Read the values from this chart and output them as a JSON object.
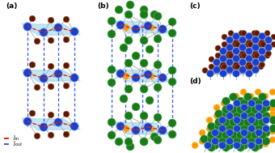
{
  "fig_width": 3.4,
  "fig_height": 1.89,
  "dpi": 100,
  "bg_color": "#ffffff",
  "colors": {
    "blue": "#1a3fcc",
    "dark_red": "#5c1800",
    "green": "#1a7a1a",
    "orange": "#ff9900",
    "light_blue_plane": "#7ec8e3",
    "red_dash": "#dd2200",
    "blue_dash": "#3355ee",
    "bond": "#aaaaaa",
    "ghost_blue": "#90b0d0"
  },
  "labels": [
    "(a)",
    "(b)",
    "(c)",
    "(d)"
  ],
  "legend_Jin": "J$_{in}$",
  "legend_Jout": "J$_{out}$"
}
